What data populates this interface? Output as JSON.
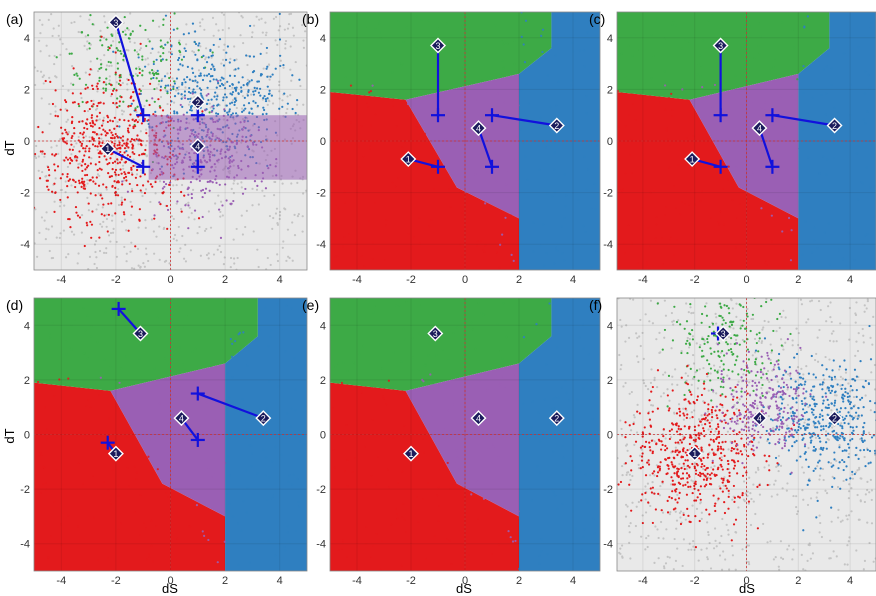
{
  "figure": {
    "xlabel": "dS",
    "ylabel": "dT",
    "xticks": [
      "-4",
      "-2",
      "0",
      "2",
      "4"
    ],
    "yticks": [
      "4",
      "2",
      "0",
      "-2",
      "-4"
    ],
    "xlim": [
      -5,
      5
    ],
    "ylim": [
      -5,
      5
    ],
    "colors": {
      "red": "#e31a1c",
      "green": "#3daa46",
      "blue": "#2f7fc0",
      "purple": "#9a5fb4",
      "gray": "#c4c4c4",
      "marker": "#1111dd"
    }
  },
  "chart_data": [
    {
      "type": "scatter",
      "panel_label": "(a)",
      "region_style": "points",
      "centroids": [
        {
          "id": "1",
          "x": -2.3,
          "y": -0.3,
          "color": "red"
        },
        {
          "id": "2",
          "x": 1.0,
          "y": 1.5,
          "color": "blue"
        },
        {
          "id": "3",
          "x": -2.0,
          "y": 4.6,
          "color": "green"
        },
        {
          "id": "4",
          "x": 1.0,
          "y": -0.2,
          "color": "purple"
        }
      ],
      "estimates": [
        {
          "id": "1",
          "x": -1.0,
          "y": -1.0
        },
        {
          "id": "2",
          "x": 1.0,
          "y": 1.0
        },
        {
          "id": "3",
          "x": -1.0,
          "y": 1.0
        },
        {
          "id": "4",
          "x": 1.0,
          "y": -1.0
        }
      ]
    },
    {
      "type": "scatter",
      "panel_label": "(b)",
      "region_style": "partition",
      "centroids": [
        {
          "id": "1",
          "x": -2.1,
          "y": -0.7,
          "color": "red"
        },
        {
          "id": "2",
          "x": 3.4,
          "y": 0.6,
          "color": "blue"
        },
        {
          "id": "3",
          "x": -1.0,
          "y": 3.7,
          "color": "green"
        },
        {
          "id": "4",
          "x": 0.5,
          "y": 0.5,
          "color": "purple"
        }
      ],
      "estimates": [
        {
          "id": "1",
          "x": -1.0,
          "y": -1.0
        },
        {
          "id": "2",
          "x": 1.0,
          "y": 1.0
        },
        {
          "id": "3",
          "x": -1.0,
          "y": 1.0
        },
        {
          "id": "4",
          "x": 1.0,
          "y": -1.0
        }
      ]
    },
    {
      "type": "scatter",
      "panel_label": "(c)",
      "region_style": "partition",
      "centroids": [
        {
          "id": "1",
          "x": -2.1,
          "y": -0.7,
          "color": "red"
        },
        {
          "id": "2",
          "x": 3.4,
          "y": 0.6,
          "color": "blue"
        },
        {
          "id": "3",
          "x": -1.0,
          "y": 3.7,
          "color": "green"
        },
        {
          "id": "4",
          "x": 0.5,
          "y": 0.5,
          "color": "purple"
        }
      ],
      "estimates": [
        {
          "id": "1",
          "x": -1.0,
          "y": -1.0
        },
        {
          "id": "2",
          "x": 1.0,
          "y": 1.0
        },
        {
          "id": "3",
          "x": -1.0,
          "y": 1.0
        },
        {
          "id": "4",
          "x": 1.0,
          "y": -1.0
        }
      ]
    },
    {
      "type": "scatter",
      "panel_label": "(d)",
      "region_style": "partition",
      "centroids": [
        {
          "id": "1",
          "x": -2.0,
          "y": -0.7,
          "color": "red"
        },
        {
          "id": "2",
          "x": 3.4,
          "y": 0.6,
          "color": "blue"
        },
        {
          "id": "3",
          "x": -1.1,
          "y": 3.7,
          "color": "green"
        },
        {
          "id": "4",
          "x": 0.4,
          "y": 0.6,
          "color": "purple"
        }
      ],
      "estimates": [
        {
          "id": "1",
          "x": -2.3,
          "y": -0.3
        },
        {
          "id": "2",
          "x": 1.0,
          "y": 1.5
        },
        {
          "id": "3",
          "x": -1.9,
          "y": 4.6
        },
        {
          "id": "4",
          "x": 1.0,
          "y": -0.2
        }
      ]
    },
    {
      "type": "scatter",
      "panel_label": "(e)",
      "region_style": "partition",
      "centroids": [
        {
          "id": "1",
          "x": -2.0,
          "y": -0.7,
          "color": "red"
        },
        {
          "id": "2",
          "x": 3.4,
          "y": 0.6,
          "color": "blue"
        },
        {
          "id": "3",
          "x": -1.1,
          "y": 3.7,
          "color": "green"
        },
        {
          "id": "4",
          "x": 0.5,
          "y": 0.6,
          "color": "purple"
        }
      ],
      "estimates": [
        {
          "id": "1",
          "x": -2.0,
          "y": -0.7
        },
        {
          "id": "2",
          "x": 3.4,
          "y": 0.6
        },
        {
          "id": "3",
          "x": -1.1,
          "y": 3.7
        },
        {
          "id": "4",
          "x": 0.5,
          "y": 0.6
        }
      ]
    },
    {
      "type": "scatter",
      "panel_label": "(f)",
      "region_style": "points",
      "centroids": [
        {
          "id": "1",
          "x": -2.0,
          "y": -0.7,
          "color": "red"
        },
        {
          "id": "2",
          "x": 3.4,
          "y": 0.6,
          "color": "blue"
        },
        {
          "id": "3",
          "x": -0.9,
          "y": 3.7,
          "color": "green"
        },
        {
          "id": "4",
          "x": 0.5,
          "y": 0.6,
          "color": "purple"
        }
      ],
      "estimates": [
        {
          "id": "1",
          "x": -2.0,
          "y": -0.7
        },
        {
          "id": "2",
          "x": 3.4,
          "y": 0.6
        },
        {
          "id": "3",
          "x": -1.1,
          "y": 3.7
        },
        {
          "id": "4",
          "x": 0.5,
          "y": 0.6
        }
      ]
    }
  ]
}
